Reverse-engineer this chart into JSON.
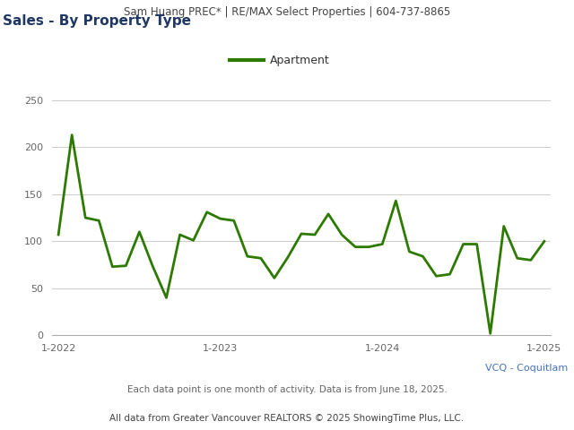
{
  "title_header": "Sam Huang PREC* | RE/MAX Select Properties | 604-737-8865",
  "title": "Sales - By Property Type",
  "legend_label": "Apartment",
  "line_color": "#2d7a00",
  "line_width": 2.0,
  "ylabel_values": [
    0,
    50,
    100,
    150,
    200,
    250
  ],
  "x_tick_labels": [
    "1-2022",
    "1-2023",
    "1-2024",
    "1-2025"
  ],
  "footer_line1": "VCQ - Coquitlam",
  "footer_line2": "Each data point is one month of activity. Data is from June 18, 2025.",
  "footer_line3": "All data from Greater Vancouver REALTORS © 2025 ShowingTime Plus, LLC.",
  "background_color": "#ffffff",
  "plot_bg_color": "#ffffff",
  "header_bg_color": "#e0e0e0",
  "ylim": [
    0,
    265
  ],
  "data_values": [
    107,
    213,
    125,
    122,
    73,
    74,
    110,
    73,
    40,
    107,
    101,
    131,
    124,
    122,
    84,
    82,
    61,
    83,
    108,
    107,
    129,
    107,
    94,
    94,
    97,
    143,
    89,
    84,
    63,
    65,
    97,
    97,
    2,
    116,
    82,
    80,
    100
  ],
  "grid_color": "#cccccc",
  "title_color": "#1f3864",
  "header_text_color": "#444444",
  "footer_color1": "#4472c4",
  "footer_color2": "#666666",
  "footer_color3": "#444444",
  "tick_color": "#666666",
  "legend_line_color": "#2d7a00"
}
